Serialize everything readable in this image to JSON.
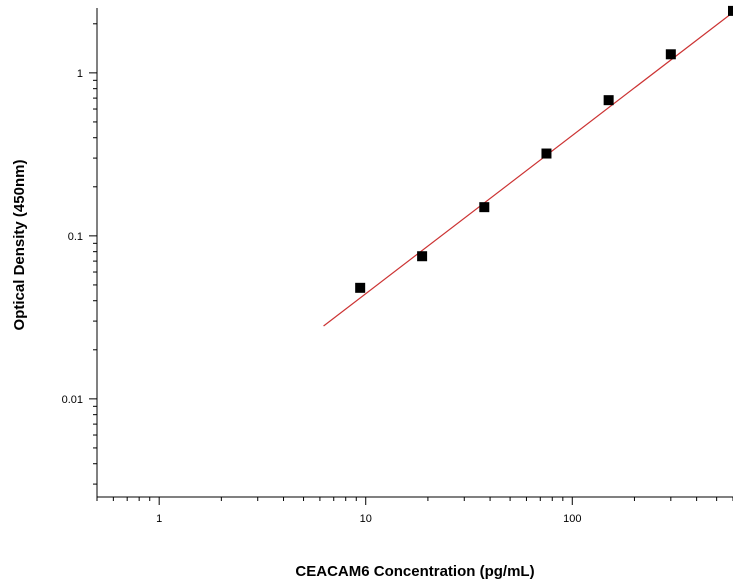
{
  "chart_data": {
    "type": "scatter",
    "title": "",
    "xlabel": "CEACAM6 Concentration (pg/mL)",
    "ylabel": "Optical Density (450nm)",
    "x_scale": "log",
    "y_scale": "log",
    "xlim": [
      0.5,
      600
    ],
    "ylim": [
      0.0025,
      2.5
    ],
    "x_ticks": [
      {
        "value": 1,
        "label": "1"
      },
      {
        "value": 10,
        "label": "10"
      },
      {
        "value": 100,
        "label": "100"
      }
    ],
    "y_ticks": [
      {
        "value": 0.01,
        "label": "0.01"
      },
      {
        "value": 0.1,
        "label": "0.1"
      },
      {
        "value": 1,
        "label": "1"
      }
    ],
    "grid": false,
    "legend": "none",
    "series": [
      {
        "kind": "points",
        "color": "#000000",
        "x": [
          9.4,
          18.75,
          37.5,
          75,
          150,
          300,
          600
        ],
        "y": [
          0.048,
          0.075,
          0.15,
          0.32,
          0.68,
          1.3,
          2.4
        ]
      },
      {
        "kind": "fit-line",
        "color": "#cc3333",
        "x": [
          6.25,
          600
        ],
        "y": [
          0.028,
          2.35
        ]
      }
    ]
  }
}
